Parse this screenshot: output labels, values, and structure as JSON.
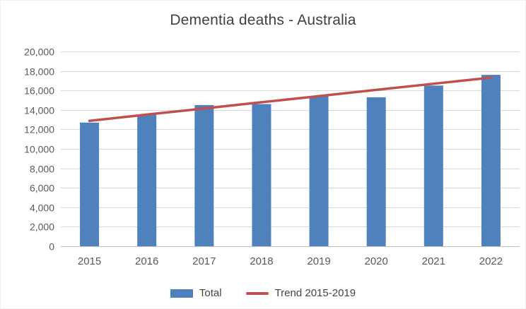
{
  "chart_data": {
    "type": "bar",
    "title": "Dementia deaths - Australia",
    "categories": [
      "2015",
      "2016",
      "2017",
      "2018",
      "2019",
      "2020",
      "2021",
      "2022"
    ],
    "series": [
      {
        "name": "Total",
        "type": "bar",
        "color": "#4F81BD",
        "values": [
          12700,
          13500,
          14500,
          14600,
          15400,
          15300,
          16500,
          17600
        ]
      },
      {
        "name": "Trend 2015-2019",
        "type": "line",
        "color": "#C0504D",
        "values": [
          12880,
          13520,
          14150,
          14790,
          15420,
          16060,
          16690,
          17320
        ]
      }
    ],
    "xlabel": "",
    "ylabel": "",
    "ylim": [
      0,
      20000
    ],
    "ytick_step": 2000,
    "ytick_format": "thousands-comma",
    "grid": true,
    "legend_position": "bottom"
  }
}
